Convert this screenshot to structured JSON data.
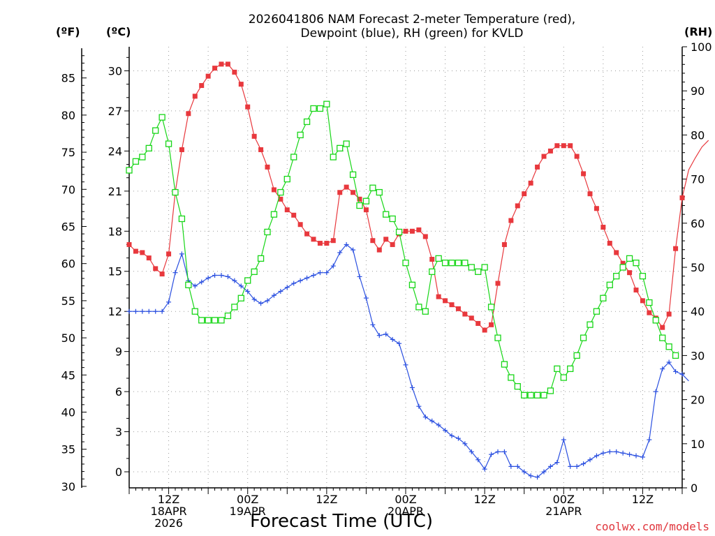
{
  "header": {
    "line1": "2026041806 NAM Forecast 2-meter Temperature (red),",
    "line2": "Dewpoint (blue), RH (green) for KVLD"
  },
  "axis_units": {
    "fahrenheit": "(ºF)",
    "celsius": "(ºC)",
    "rh": "(RH)"
  },
  "credit": "coolwx.com/models",
  "colors": {
    "temperature": "#e8383d",
    "dewpoint": "#2a4fe0",
    "rh": "#17d617",
    "grid": "#9a9a9a",
    "credit": "#e0353c"
  },
  "chart_data": {
    "type": "line",
    "title": "2026041806 NAM Forecast 2-meter Temperature (red), Dewpoint (blue), RH (green) for KVLD",
    "xlabel": "Forecast Time (UTC)",
    "x_start": "2026-04-18 06Z",
    "x_step_hours": 1,
    "xlim_hours": [
      0,
      84
    ],
    "ylim_celsius": [
      -1.2,
      31.8
    ],
    "ylim_fahrenheit": [
      29.8,
      89.2
    ],
    "ylim_rh": [
      0,
      100
    ],
    "grid": true,
    "x_ticks": [
      {
        "hour": 6,
        "lines": [
          "12Z",
          "18APR",
          "2026"
        ]
      },
      {
        "hour": 18,
        "lines": [
          "00Z",
          "19APR"
        ]
      },
      {
        "hour": 30,
        "lines": [
          "12Z"
        ]
      },
      {
        "hour": 42,
        "lines": [
          "00Z",
          "20APR"
        ]
      },
      {
        "hour": 54,
        "lines": [
          "12Z"
        ]
      },
      {
        "hour": 66,
        "lines": [
          "00Z",
          "21APR"
        ]
      },
      {
        "hour": 78,
        "lines": [
          "12Z"
        ]
      }
    ],
    "celsius_ticks": [
      "0",
      "3",
      "6",
      "9",
      "12",
      "15",
      "18",
      "21",
      "24",
      "27",
      "30"
    ],
    "fahrenheit_ticks": [
      "30",
      "35",
      "40",
      "45",
      "50",
      "55",
      "60",
      "65",
      "70",
      "75",
      "80",
      "85"
    ],
    "rh_ticks": [
      "0",
      "10",
      "20",
      "30",
      "40",
      "50",
      "60",
      "70",
      "80",
      "90",
      "100"
    ],
    "series": [
      {
        "name": "Temperature",
        "unit": "C",
        "color": "#e8383d",
        "marker": "filled-square",
        "values": [
          17.0,
          16.5,
          16.4,
          16.0,
          15.2,
          14.8,
          16.3,
          20.9,
          24.1,
          26.8,
          28.1,
          28.9,
          29.6,
          30.2,
          30.5,
          30.5,
          29.9,
          29.0,
          27.3,
          25.1,
          24.1,
          22.8,
          21.1,
          20.4,
          19.6,
          19.2,
          18.5,
          17.8,
          17.4,
          17.1,
          17.1,
          17.3,
          20.9,
          21.3,
          20.9,
          20.4,
          19.6,
          17.3,
          16.6,
          17.4,
          17.0,
          17.8,
          18.0,
          18.0,
          18.1,
          17.6,
          15.9,
          13.1,
          12.8,
          12.5,
          12.2,
          11.8,
          11.5,
          11.1,
          10.6,
          11.0,
          14.1,
          17.0,
          18.8,
          19.9,
          20.8,
          21.6,
          22.8,
          23.6,
          24.0,
          24.4,
          24.4,
          24.4,
          23.6,
          22.3,
          20.8,
          19.7,
          18.3,
          17.1,
          16.4,
          15.6,
          14.9,
          13.6,
          12.8,
          11.9,
          11.5,
          10.8,
          11.8,
          16.7,
          20.5,
          22.6,
          23.5,
          24.3,
          24.8
        ]
      },
      {
        "name": "Dewpoint",
        "unit": "C",
        "color": "#2a4fe0",
        "marker": "plus",
        "values": [
          12.0,
          12.0,
          12.0,
          12.0,
          12.0,
          12.0,
          12.7,
          14.9,
          16.3,
          14.3,
          13.9,
          14.2,
          14.5,
          14.7,
          14.7,
          14.6,
          14.3,
          13.9,
          13.5,
          12.9,
          12.6,
          12.8,
          13.2,
          13.5,
          13.8,
          14.1,
          14.3,
          14.5,
          14.7,
          14.9,
          14.9,
          15.4,
          16.4,
          17.0,
          16.6,
          14.6,
          13.0,
          11.0,
          10.2,
          10.3,
          9.9,
          9.6,
          8.0,
          6.3,
          4.9,
          4.1,
          3.8,
          3.5,
          3.1,
          2.7,
          2.5,
          2.1,
          1.5,
          0.9,
          0.2,
          1.3,
          1.5,
          1.5,
          0.4,
          0.4,
          0.0,
          -0.3,
          -0.4,
          0.0,
          0.4,
          0.7,
          2.4,
          0.4,
          0.4,
          0.6,
          0.9,
          1.2,
          1.4,
          1.5,
          1.5,
          1.4,
          1.3,
          1.2,
          1.1,
          2.4,
          6.0,
          7.7,
          8.2,
          7.5,
          7.3,
          6.8
        ]
      },
      {
        "name": "RH",
        "unit": "%",
        "color": "#17d617",
        "marker": "open-square",
        "values": [
          72,
          74,
          75,
          77,
          81,
          84,
          78,
          67,
          61,
          46,
          40,
          38,
          38,
          38,
          38,
          39,
          41,
          43,
          47,
          49,
          52,
          58,
          62,
          67,
          70,
          75,
          80,
          83,
          86,
          86,
          87,
          75,
          77,
          78,
          71,
          64,
          65,
          68,
          67,
          62,
          61,
          58,
          51,
          46,
          41,
          40,
          49,
          52,
          51,
          51,
          51,
          51,
          50,
          49,
          50,
          41,
          34,
          28,
          25,
          23,
          21,
          21,
          21,
          21,
          22,
          27,
          25,
          27,
          30,
          34,
          37,
          40,
          43,
          46,
          48,
          50,
          52,
          51,
          48,
          42,
          38,
          34,
          32,
          30
        ]
      }
    ]
  }
}
